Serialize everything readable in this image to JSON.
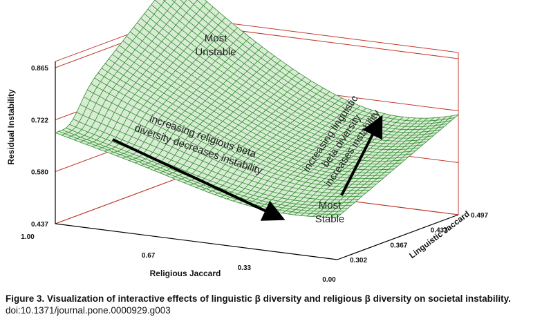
{
  "chart_data": {
    "type": "surface",
    "z_axis": {
      "label": "Residual Instability",
      "ticks": [
        "0.437",
        "0.580",
        "0.722",
        "0.865"
      ],
      "range": [
        0.437,
        0.865
      ]
    },
    "x_axis": {
      "label": "Religious Jaccard",
      "ticks": [
        "1.00",
        "0.67",
        "0.33",
        "0.00"
      ],
      "range": [
        1.0,
        0.0
      ]
    },
    "y_axis": {
      "label": "Linguistic Jaccard",
      "ticks": [
        "0.302",
        "0.367",
        "0.432",
        "0.497"
      ],
      "range": [
        0.302,
        0.497
      ]
    },
    "surface_color": "#2e8b2e",
    "annotations": {
      "most_unstable": [
        "Most",
        "Unstable"
      ],
      "most_stable": [
        "Most",
        "Stable"
      ],
      "religious_arrow": [
        "increasing religious beta",
        "diversity decreases instability"
      ],
      "linguistic_arrow": [
        "increasing linguistic",
        "beta diversity",
        "increases instability"
      ]
    }
  },
  "caption": {
    "bold": "Figure 3. Visualization of interactive effects of linguistic β diversity and religious β diversity on societal instability.",
    "doi": "doi:10.1371/journal.pone.0000929.g003"
  }
}
